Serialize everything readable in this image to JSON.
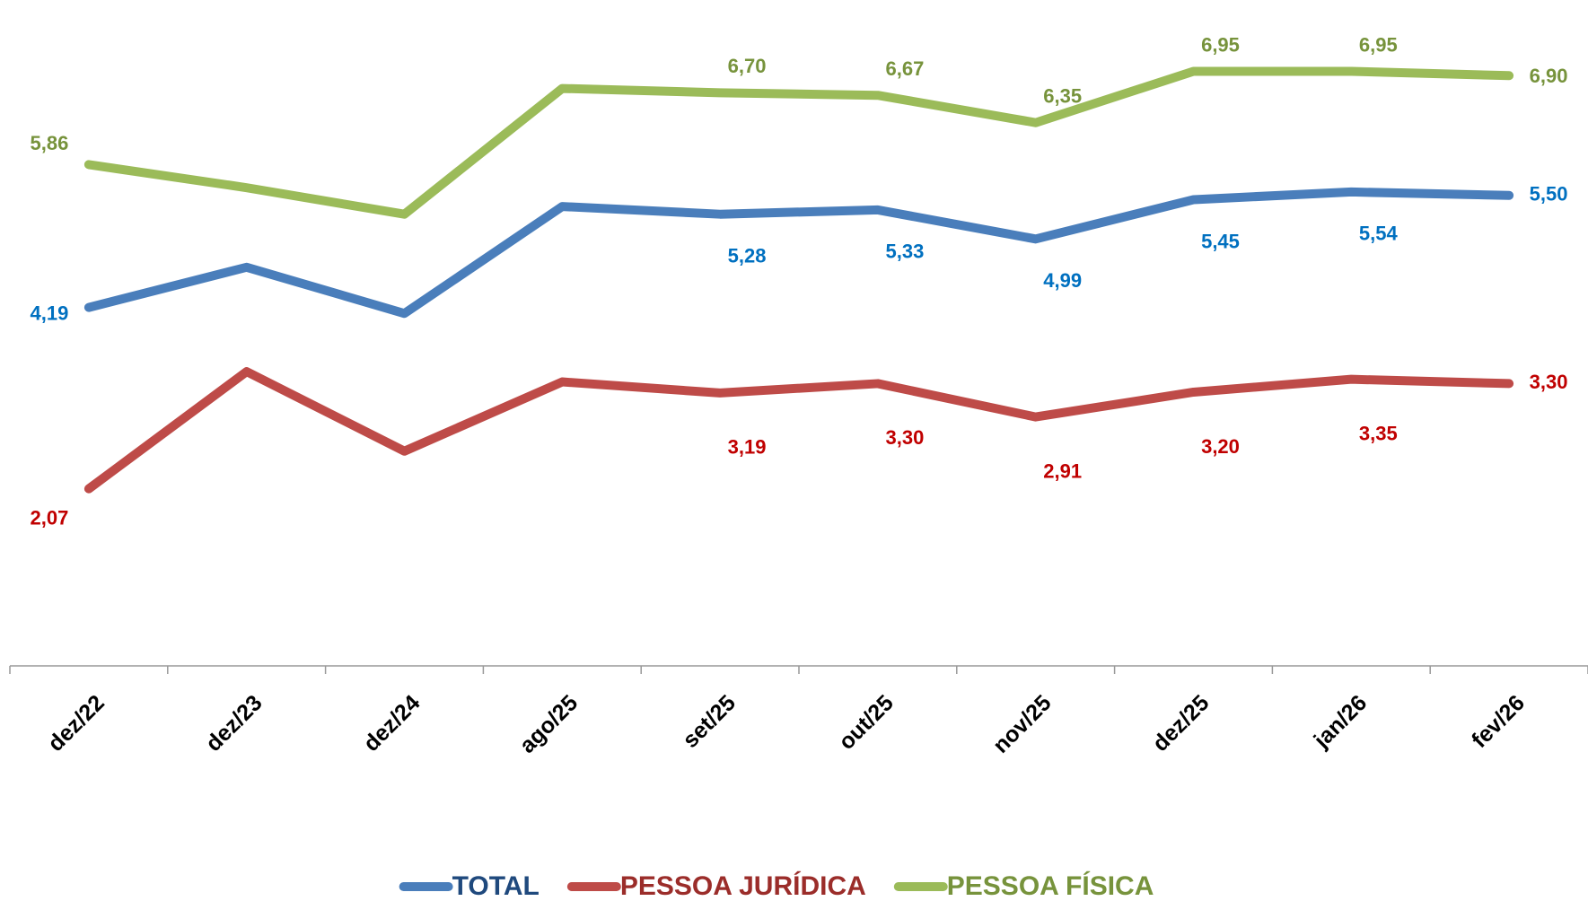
{
  "chart_data": {
    "type": "line",
    "categories": [
      "dez/22",
      "dez/23",
      "dez/24",
      "ago/25",
      "set/25",
      "out/25",
      "nov/25",
      "dez/25",
      "jan/26",
      "fev/26"
    ],
    "series": [
      {
        "name": "TOTAL",
        "color": "#4a7ebb",
        "label_color": "#0070c0",
        "legend_color": "#1f497d",
        "values": [
          4.19,
          4.66,
          4.12,
          5.37,
          5.28,
          5.33,
          4.99,
          5.45,
          5.54,
          5.5
        ],
        "value_labels": [
          "4,19",
          null,
          null,
          null,
          "5,28",
          "5,33",
          "4,99",
          "5,45",
          "5,54",
          "5,50"
        ]
      },
      {
        "name": "PESSOA JURÍDICA",
        "color": "#be4b48",
        "label_color": "#c00000",
        "legend_color": "#9b2d2a",
        "values": [
          2.07,
          3.44,
          2.51,
          3.32,
          3.19,
          3.3,
          2.91,
          3.2,
          3.35,
          3.3
        ],
        "value_labels": [
          "2,07",
          null,
          null,
          null,
          "3,19",
          "3,30",
          "2,91",
          "3,20",
          "3,35",
          "3,30"
        ]
      },
      {
        "name": "PESSOA FÍSICA",
        "color": "#9bbb59",
        "label_color": "#77933c",
        "legend_color": "#77933c",
        "values": [
          5.86,
          5.59,
          5.28,
          6.75,
          6.7,
          6.67,
          6.35,
          6.95,
          6.95,
          6.9
        ],
        "value_labels": [
          "5,86",
          null,
          null,
          null,
          "6,70",
          "6,67",
          "6,35",
          "6,95",
          "6,95",
          "6,90"
        ]
      }
    ],
    "legend_position": "bottom"
  }
}
